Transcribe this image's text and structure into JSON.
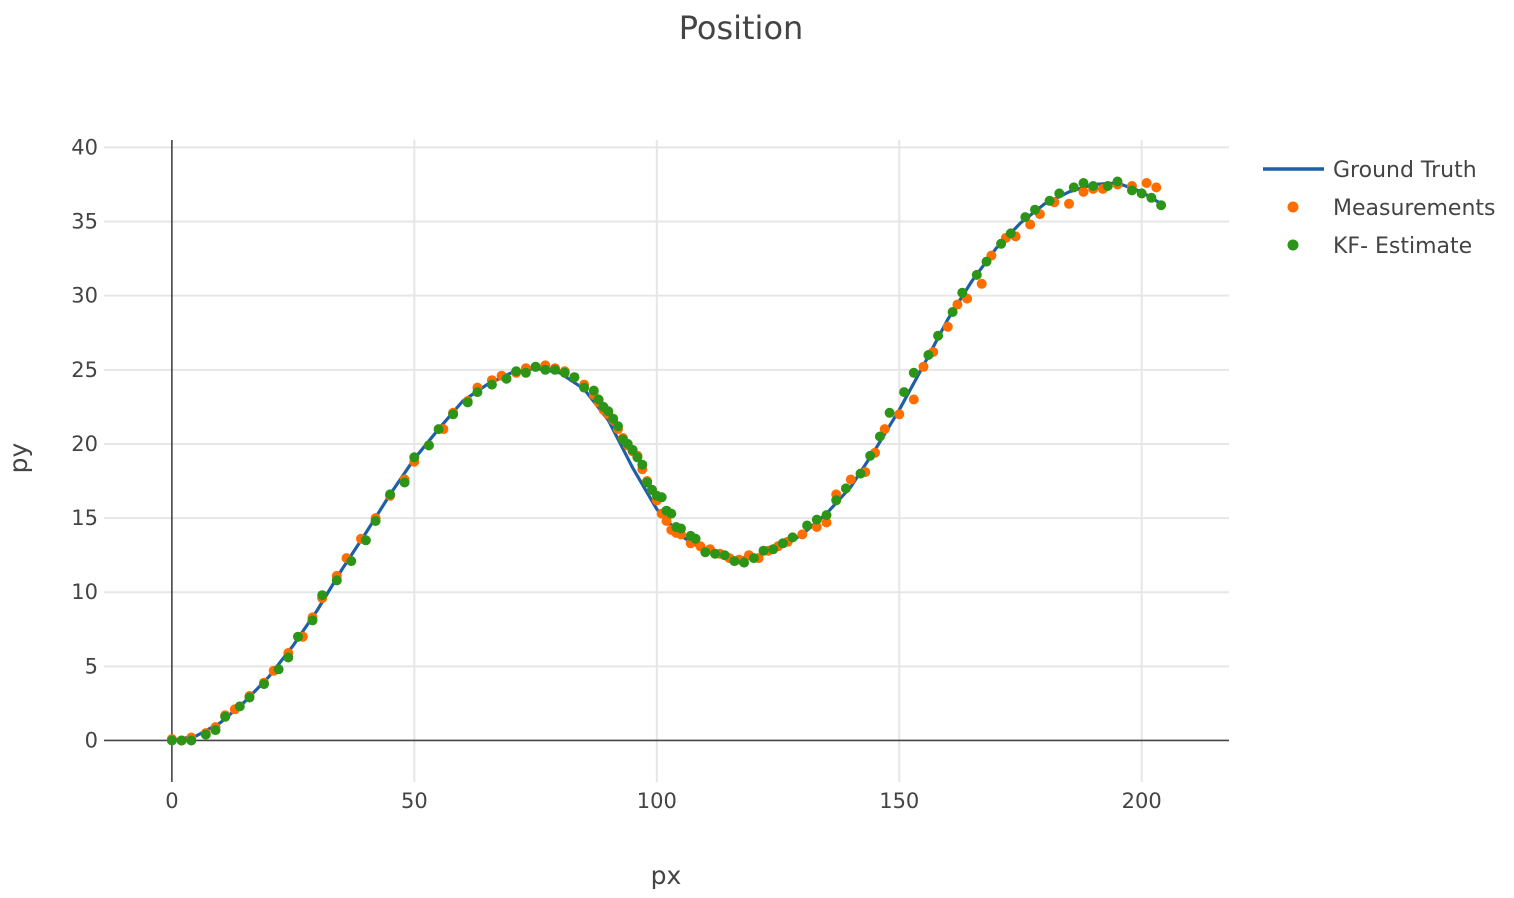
{
  "chart_data": {
    "type": "scatter",
    "title": "Position",
    "xlabel": "px",
    "ylabel": "py",
    "xlim": [
      -14,
      218
    ],
    "ylim": [
      -2.8,
      40.5
    ],
    "xticks": [
      0,
      50,
      100,
      150,
      200
    ],
    "yticks": [
      0,
      5,
      10,
      15,
      20,
      25,
      30,
      35,
      40
    ],
    "grid": true,
    "legend_position": "top-right",
    "colors": {
      "ground_truth": "#1f5fa8",
      "measurements": "#ff6d00",
      "kf_estimate": "#2c9417",
      "grid": "#e6e6e6",
      "axis": "#444444"
    },
    "series": [
      {
        "name": "Ground Truth",
        "mode": "line",
        "x": [
          0,
          5,
          10,
          15,
          20,
          25,
          30,
          35,
          40,
          45,
          50,
          55,
          60,
          65,
          70,
          75,
          80,
          85,
          90,
          95,
          100,
          105,
          110,
          115,
          120,
          125,
          130,
          135,
          140,
          145,
          150,
          155,
          160,
          165,
          170,
          175,
          180,
          185,
          190,
          195,
          200,
          204
        ],
        "y": [
          0,
          0.3,
          1.2,
          2.6,
          4.3,
          6.4,
          8.8,
          11.5,
          14.0,
          16.6,
          19.0,
          21.0,
          22.9,
          24.0,
          24.8,
          25.1,
          24.8,
          23.7,
          21.6,
          18.4,
          15.6,
          13.8,
          12.8,
          12.2,
          12.4,
          12.9,
          13.9,
          15.3,
          17.1,
          19.6,
          22.3,
          25.3,
          28.4,
          31.0,
          33.2,
          34.9,
          36.2,
          37.0,
          37.5,
          37.6,
          37.0,
          36.2
        ]
      },
      {
        "name": "Measurements",
        "mode": "markers",
        "x": [
          0,
          2,
          4,
          7,
          9,
          11,
          13,
          16,
          19,
          21,
          24,
          27,
          29,
          31,
          34,
          36,
          39,
          42,
          45,
          48,
          50,
          53,
          56,
          58,
          61,
          63,
          66,
          68,
          71,
          73,
          75,
          77,
          79,
          81,
          83,
          85,
          87,
          88,
          89,
          90,
          91,
          92,
          93,
          94,
          95,
          96,
          97,
          98,
          99,
          100,
          101,
          102,
          103,
          104,
          105,
          107,
          109,
          111,
          113,
          115,
          117,
          119,
          121,
          123,
          125,
          127,
          130,
          133,
          135,
          137,
          140,
          143,
          145,
          147,
          150,
          153,
          155,
          157,
          160,
          162,
          164,
          167,
          169,
          172,
          174,
          177,
          179,
          182,
          185,
          188,
          190,
          192,
          195,
          198,
          201,
          203
        ],
        "y": [
          0.1,
          0.0,
          0.2,
          0.5,
          0.9,
          1.7,
          2.1,
          3.0,
          3.9,
          4.7,
          5.9,
          7.0,
          8.3,
          9.6,
          11.1,
          12.3,
          13.6,
          15.0,
          16.5,
          17.6,
          18.8,
          19.9,
          21.0,
          22.1,
          22.9,
          23.8,
          24.3,
          24.6,
          24.8,
          25.1,
          25.2,
          25.3,
          25.1,
          24.9,
          24.5,
          24.0,
          23.3,
          22.8,
          22.3,
          22.0,
          21.6,
          21.0,
          20.4,
          19.9,
          19.5,
          19.2,
          18.3,
          17.5,
          16.9,
          16.2,
          15.3,
          14.8,
          14.2,
          14.0,
          13.9,
          13.3,
          13.1,
          12.9,
          12.6,
          12.3,
          12.2,
          12.5,
          12.3,
          12.8,
          13.1,
          13.4,
          13.9,
          14.4,
          14.7,
          16.6,
          17.6,
          18.1,
          19.4,
          21.0,
          22.0,
          23.0,
          25.2,
          26.2,
          27.9,
          29.4,
          29.8,
          30.8,
          32.7,
          33.9,
          34.0,
          34.8,
          35.5,
          36.3,
          36.2,
          37.0,
          37.2,
          37.2,
          37.5,
          37.4,
          37.6,
          37.3
        ]
      },
      {
        "name": "KF- Estimate",
        "mode": "markers",
        "x": [
          0,
          2,
          4,
          7,
          9,
          11,
          14,
          16,
          19,
          22,
          24,
          26,
          29,
          31,
          34,
          37,
          40,
          42,
          45,
          48,
          50,
          53,
          55,
          58,
          61,
          63,
          66,
          69,
          71,
          73,
          75,
          77,
          79,
          81,
          83,
          85,
          87,
          88,
          89,
          90,
          91,
          92,
          93,
          94,
          95,
          96,
          97,
          98,
          99,
          100,
          101,
          102,
          103,
          104,
          105,
          107,
          108,
          110,
          112,
          114,
          116,
          118,
          120,
          122,
          124,
          126,
          128,
          131,
          133,
          135,
          137,
          139,
          142,
          144,
          146,
          148,
          151,
          153,
          156,
          158,
          161,
          163,
          166,
          168,
          171,
          173,
          176,
          178,
          181,
          183,
          186,
          188,
          190,
          193,
          195,
          198,
          200,
          202,
          204
        ],
        "y": [
          0.0,
          0.0,
          0.0,
          0.4,
          0.7,
          1.6,
          2.3,
          2.9,
          3.8,
          4.8,
          5.6,
          7.0,
          8.1,
          9.8,
          10.8,
          12.1,
          13.5,
          14.8,
          16.6,
          17.4,
          19.1,
          19.9,
          21.0,
          22.0,
          22.8,
          23.5,
          24.0,
          24.4,
          24.9,
          24.8,
          25.2,
          25.0,
          25.0,
          24.8,
          24.5,
          23.8,
          23.6,
          23.0,
          22.5,
          22.2,
          21.7,
          21.2,
          20.3,
          20.0,
          19.6,
          19.1,
          18.6,
          17.4,
          16.9,
          16.5,
          16.4,
          15.5,
          15.3,
          14.4,
          14.3,
          13.8,
          13.6,
          12.7,
          12.6,
          12.5,
          12.1,
          12.0,
          12.3,
          12.8,
          12.9,
          13.3,
          13.7,
          14.5,
          14.9,
          15.2,
          16.2,
          17.0,
          18.0,
          19.2,
          20.5,
          22.1,
          23.5,
          24.8,
          26.0,
          27.3,
          28.9,
          30.2,
          31.4,
          32.3,
          33.5,
          34.2,
          35.3,
          35.8,
          36.4,
          36.9,
          37.3,
          37.6,
          37.4,
          37.4,
          37.7,
          37.1,
          36.9,
          36.6,
          36.1
        ]
      }
    ]
  }
}
